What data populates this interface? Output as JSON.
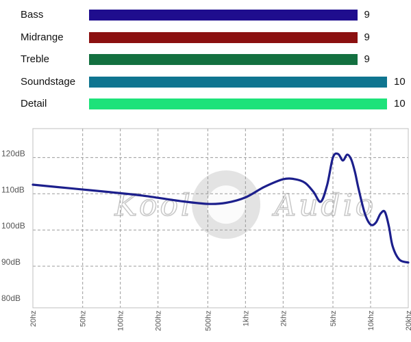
{
  "chart_data": [
    {
      "type": "bar",
      "orientation": "horizontal",
      "categories": [
        "Bass",
        "Midrange",
        "Treble",
        "Soundstage",
        "Detail"
      ],
      "values": [
        9,
        9,
        9,
        10,
        10
      ],
      "colors": [
        "#1f0d8e",
        "#8b1010",
        "#137040",
        "#0f7590",
        "#1de27a"
      ],
      "xlim": [
        0,
        10
      ]
    },
    {
      "type": "line",
      "x_scale": "log",
      "x_ticks": [
        "20hz",
        "50hz",
        "100hz",
        "200hz",
        "500hz",
        "1khz",
        "2khz",
        "5khz",
        "10khz",
        "20khz"
      ],
      "x_tick_values": [
        20,
        50,
        100,
        200,
        500,
        1000,
        2000,
        5000,
        10000,
        20000
      ],
      "y_ticks": [
        "80dB",
        "90dB",
        "100dB",
        "110dB",
        "120dB"
      ],
      "y_tick_values": [
        80,
        90,
        100,
        110,
        120
      ],
      "ylim": [
        78.5,
        128
      ],
      "xlim": [
        20,
        20000
      ],
      "grid": true,
      "line_color": "#1c1f8c",
      "series": [
        {
          "x": [
            20,
            40,
            80,
            150,
            300,
            500,
            700,
            1000,
            1400,
            2000,
            2500,
            3000,
            3500,
            4000,
            4500,
            5000,
            5500,
            6000,
            6500,
            7000,
            7500,
            8000,
            9000,
            10000,
            11000,
            12000,
            13000,
            14000,
            15000,
            17000,
            20000
          ],
          "y": [
            112.5,
            111.5,
            110.5,
            109.5,
            108,
            107.2,
            107.5,
            109,
            111.8,
            114,
            114,
            113,
            110.5,
            107.8,
            112.5,
            120,
            121,
            119.2,
            120.8,
            119.5,
            116,
            111.5,
            104.5,
            101.5,
            102,
            104.5,
            105,
            101,
            95.5,
            91.8,
            91
          ]
        }
      ]
    }
  ],
  "watermark_text": "Kool Audio"
}
